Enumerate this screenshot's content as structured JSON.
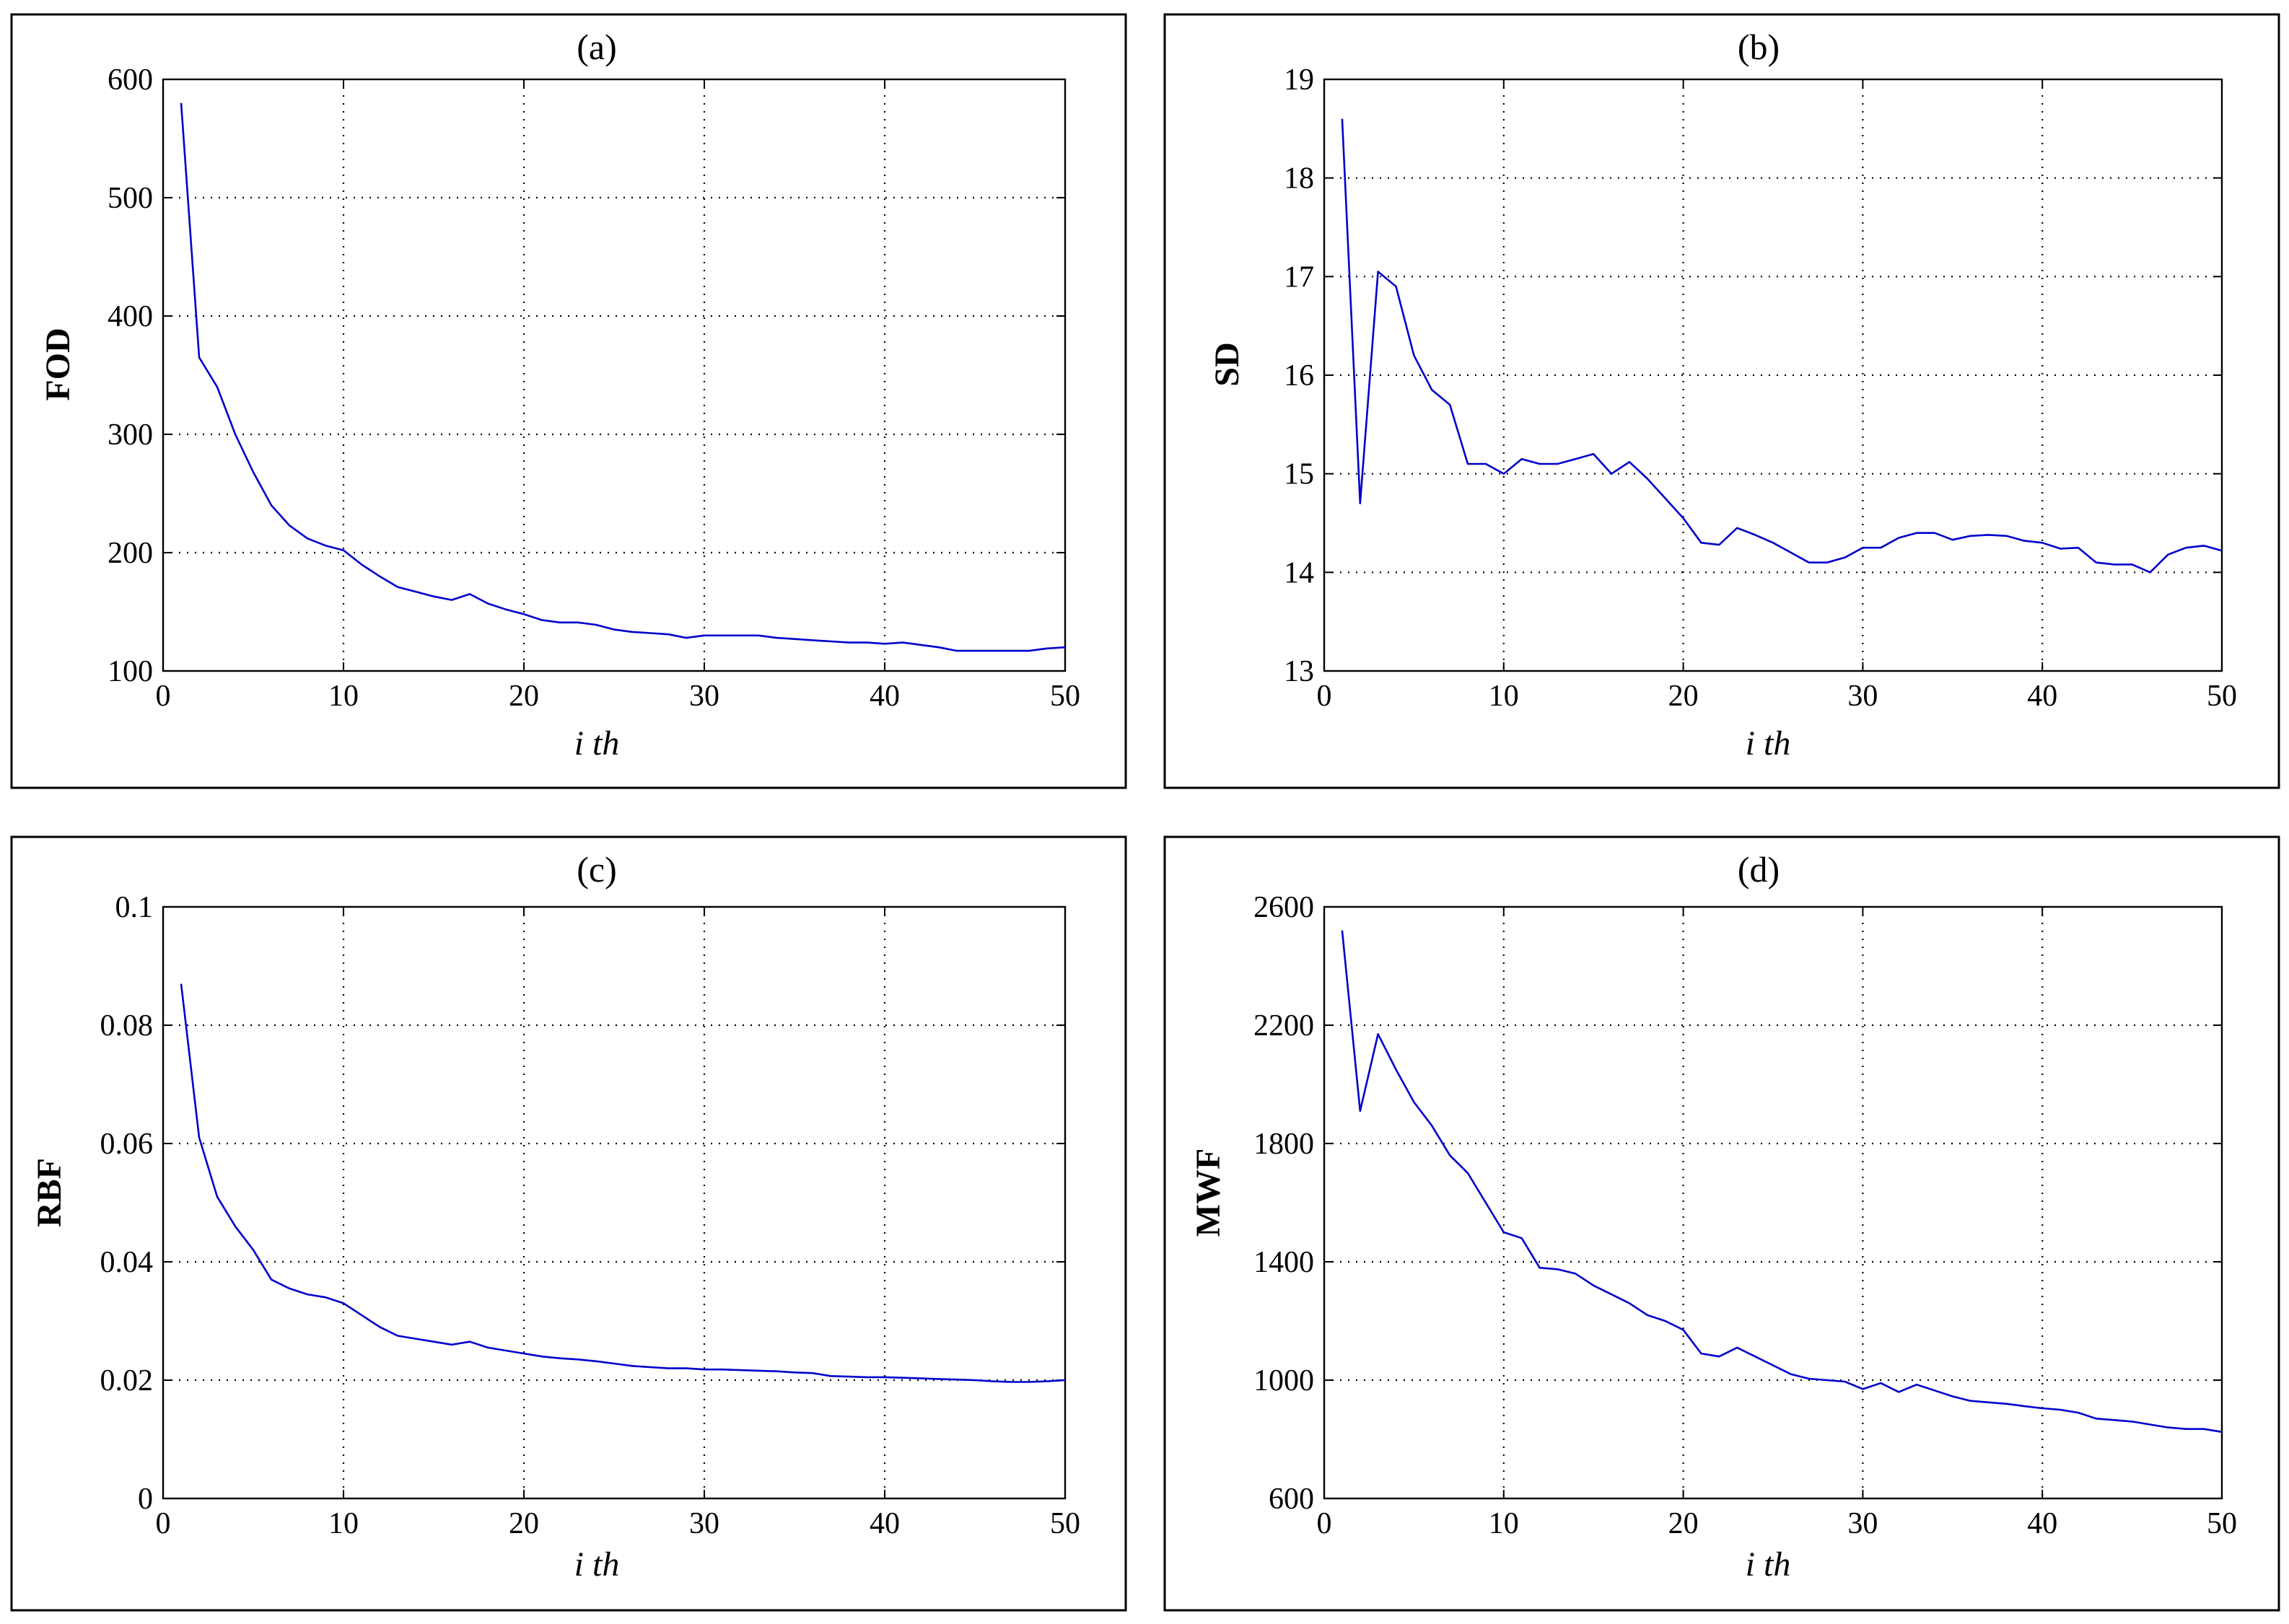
{
  "chart_data": [
    {
      "type": "line",
      "panel": "a",
      "title": "(a)",
      "xlabel": "i th",
      "ylabel": "FOD",
      "xlim": [
        0,
        50
      ],
      "ylim": [
        100,
        600
      ],
      "xticks": [
        0,
        10,
        20,
        30,
        40,
        50
      ],
      "yticks": [
        100,
        200,
        300,
        400,
        500,
        600
      ],
      "grid": true,
      "color": "#0000cc",
      "series": [
        {
          "name": "FOD",
          "x": [
            1,
            2,
            3,
            4,
            5,
            6,
            7,
            8,
            9,
            10,
            11,
            12,
            13,
            14,
            15,
            16,
            17,
            18,
            19,
            20,
            21,
            22,
            23,
            24,
            25,
            26,
            27,
            28,
            29,
            30,
            31,
            32,
            33,
            34,
            35,
            36,
            37,
            38,
            39,
            40,
            41,
            42,
            43,
            44,
            45,
            46,
            47,
            48,
            49,
            50
          ],
          "values": [
            580,
            365,
            340,
            300,
            268,
            240,
            223,
            212,
            206,
            202,
            190,
            180,
            171,
            167,
            163,
            160,
            165,
            157,
            152,
            148,
            143,
            141,
            141,
            139,
            135,
            133,
            132,
            131,
            128,
            130,
            130,
            130,
            130,
            128,
            127,
            126,
            125,
            124,
            124,
            123,
            124,
            122,
            120,
            117,
            117,
            117,
            117,
            117,
            119,
            120
          ]
        }
      ]
    },
    {
      "type": "line",
      "panel": "b",
      "title": "(b)",
      "xlabel": "i th",
      "ylabel": "SD",
      "xlim": [
        0,
        50
      ],
      "ylim": [
        13,
        19
      ],
      "xticks": [
        0,
        10,
        20,
        30,
        40,
        50
      ],
      "yticks": [
        13,
        14,
        15,
        16,
        17,
        18,
        19
      ],
      "grid": true,
      "color": "#0000cc",
      "series": [
        {
          "name": "SD",
          "x": [
            1,
            2,
            3,
            4,
            5,
            6,
            7,
            8,
            9,
            10,
            11,
            12,
            13,
            14,
            15,
            16,
            17,
            18,
            19,
            20,
            21,
            22,
            23,
            24,
            25,
            26,
            27,
            28,
            29,
            30,
            31,
            32,
            33,
            34,
            35,
            36,
            37,
            38,
            39,
            40,
            41,
            42,
            43,
            44,
            45,
            46,
            47,
            48,
            49,
            50
          ],
          "values": [
            18.6,
            14.7,
            17.05,
            16.9,
            16.2,
            15.85,
            15.7,
            15.1,
            15.1,
            15.0,
            15.15,
            15.1,
            15.1,
            15.15,
            15.2,
            15.0,
            15.12,
            14.95,
            14.75,
            14.55,
            14.3,
            14.28,
            14.45,
            14.38,
            14.3,
            14.2,
            14.1,
            14.1,
            14.15,
            14.25,
            14.25,
            14.35,
            14.4,
            14.4,
            14.33,
            14.37,
            14.38,
            14.37,
            14.32,
            14.3,
            14.24,
            14.25,
            14.1,
            14.08,
            14.08,
            14.0,
            14.18,
            14.25,
            14.27,
            14.22
          ]
        }
      ]
    },
    {
      "type": "line",
      "panel": "c",
      "title": "(c)",
      "xlabel": "i th",
      "ylabel": "RBF",
      "xlim": [
        0,
        50
      ],
      "ylim": [
        0,
        0.1
      ],
      "xticks": [
        0,
        10,
        20,
        30,
        40,
        50
      ],
      "yticks": [
        0,
        0.02,
        0.04,
        0.06,
        0.08,
        0.1
      ],
      "grid": true,
      "color": "#0000cc",
      "series": [
        {
          "name": "RBF",
          "x": [
            1,
            2,
            3,
            4,
            5,
            6,
            7,
            8,
            9,
            10,
            11,
            12,
            13,
            14,
            15,
            16,
            17,
            18,
            19,
            20,
            21,
            22,
            23,
            24,
            25,
            26,
            27,
            28,
            29,
            30,
            31,
            32,
            33,
            34,
            35,
            36,
            37,
            38,
            39,
            40,
            41,
            42,
            43,
            44,
            45,
            46,
            47,
            48,
            49,
            50
          ],
          "values": [
            0.087,
            0.061,
            0.051,
            0.046,
            0.042,
            0.037,
            0.0355,
            0.0345,
            0.034,
            0.033,
            0.031,
            0.029,
            0.0275,
            0.027,
            0.0265,
            0.026,
            0.0265,
            0.0255,
            0.025,
            0.0245,
            0.024,
            0.0237,
            0.0235,
            0.0232,
            0.0228,
            0.0224,
            0.0222,
            0.022,
            0.022,
            0.0218,
            0.0218,
            0.0217,
            0.0216,
            0.0215,
            0.0213,
            0.0212,
            0.0207,
            0.0206,
            0.0205,
            0.0205,
            0.0204,
            0.0203,
            0.0202,
            0.0201,
            0.02,
            0.0198,
            0.0197,
            0.0197,
            0.0198,
            0.02
          ]
        }
      ]
    },
    {
      "type": "line",
      "panel": "d",
      "title": "(d)",
      "xlabel": "i th",
      "ylabel": "MWF",
      "xlim": [
        0,
        50
      ],
      "ylim": [
        600,
        2600
      ],
      "xticks": [
        0,
        10,
        20,
        30,
        40,
        50
      ],
      "yticks": [
        600,
        1000,
        1400,
        1800,
        2200,
        2600
      ],
      "grid": true,
      "color": "#0000cc",
      "series": [
        {
          "name": "MWF",
          "x": [
            1,
            2,
            3,
            4,
            5,
            6,
            7,
            8,
            9,
            10,
            11,
            12,
            13,
            14,
            15,
            16,
            17,
            18,
            19,
            20,
            21,
            22,
            23,
            24,
            25,
            26,
            27,
            28,
            29,
            30,
            31,
            32,
            33,
            34,
            35,
            36,
            37,
            38,
            39,
            40,
            41,
            42,
            43,
            44,
            45,
            46,
            47,
            48,
            49,
            50
          ],
          "values": [
            2520,
            1910,
            2170,
            2050,
            1940,
            1860,
            1760,
            1700,
            1600,
            1500,
            1480,
            1380,
            1375,
            1360,
            1320,
            1290,
            1260,
            1220,
            1200,
            1170,
            1090,
            1080,
            1110,
            1080,
            1050,
            1020,
            1005,
            1000,
            995,
            970,
            990,
            960,
            985,
            965,
            945,
            930,
            925,
            920,
            912,
            905,
            900,
            890,
            870,
            865,
            860,
            850,
            840,
            835,
            835,
            825
          ]
        }
      ]
    }
  ]
}
